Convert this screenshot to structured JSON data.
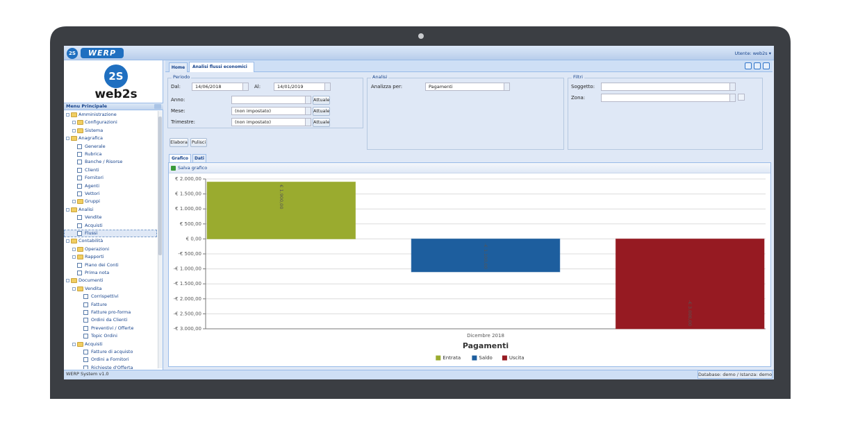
{
  "top_bar": {
    "badge": "2S",
    "logo": "WERP",
    "user": "Utente: web2s ▾"
  },
  "sidebar": {
    "badge": "2S",
    "brand": "web2s",
    "title": "Menu Principale",
    "tree": [
      {
        "label": "Amministrazione",
        "children": [
          {
            "label": "Configurazioni",
            "children": []
          },
          {
            "label": "Sistema",
            "children": []
          }
        ]
      },
      {
        "label": "Anagrafica",
        "children": [
          {
            "label": "Generale"
          },
          {
            "label": "Rubrica"
          },
          {
            "label": "Banche / Risorse"
          },
          {
            "label": "Clienti"
          },
          {
            "label": "Fornitori"
          },
          {
            "label": "Agenti"
          },
          {
            "label": "Vettori"
          },
          {
            "label": "Gruppi",
            "children": []
          }
        ]
      },
      {
        "label": "Analisi",
        "children": [
          {
            "label": "Vendite"
          },
          {
            "label": "Acquisti"
          },
          {
            "label": "Flussi",
            "selected": true
          }
        ]
      },
      {
        "label": "Contabilità",
        "children": [
          {
            "label": "Operazioni",
            "children": []
          },
          {
            "label": "Rapporti",
            "children": []
          },
          {
            "label": "Piano dei Conti"
          },
          {
            "label": "Prima nota"
          }
        ]
      },
      {
        "label": "Documenti",
        "children": [
          {
            "label": "Vendita",
            "children": [
              {
                "label": "Corrispettivi"
              },
              {
                "label": "Fatture"
              },
              {
                "label": "Fatture pro-forma"
              },
              {
                "label": "Ordini da Clienti"
              },
              {
                "label": "Preventivi / Offerte"
              },
              {
                "label": "Topic Ordini"
              }
            ]
          },
          {
            "label": "Acquisti",
            "children": [
              {
                "label": "Fatture di acquisto"
              },
              {
                "label": "Ordini a Fornitori"
              },
              {
                "label": "Richieste d'Offerta"
              }
            ]
          }
        ]
      }
    ]
  },
  "tabs": [
    "Home",
    "Analisi flussi economici"
  ],
  "periodo": {
    "legend": "Periodo",
    "dal_label": "Dal:",
    "dal": "14/06/2018",
    "al_label": "Al:",
    "al": "14/01/2019",
    "rows": [
      {
        "label": "Anno:",
        "button": "Attuale"
      },
      {
        "label": "Mese:",
        "value": "(non impostato)",
        "button": "Attuale"
      },
      {
        "label": "Trimestre:",
        "value": "(non impostato)",
        "button": "Attuale"
      }
    ]
  },
  "actions": [
    "Elabora",
    "Pulisci"
  ],
  "analisi": {
    "legend": "Analisi",
    "label": "Analizza per:",
    "value": "Pagamenti"
  },
  "filtri": {
    "legend": "Filtri",
    "fields": [
      "Soggetto:",
      "Zona:"
    ]
  },
  "view_tabs": [
    "Grafico",
    "Dati"
  ],
  "save_chart": "Salva grafico",
  "chart_data": {
    "type": "bar",
    "title": "Pagamenti",
    "categories": [
      "Dicembre 2018"
    ],
    "series": [
      {
        "name": "Entrata",
        "color": "#9aab2f",
        "values": [
          1900
        ],
        "value_labels": [
          "€ 1.900,00"
        ]
      },
      {
        "name": "Saldo",
        "color": "#1d5e9e",
        "values": [
          -1100
        ],
        "value_labels": [
          "-€ 1.100,00"
        ]
      },
      {
        "name": "Uscita",
        "color": "#961a22",
        "values": [
          -3000
        ],
        "value_labels": [
          "-€ 3.000,00"
        ]
      }
    ],
    "ylim": [
      -3000,
      2000
    ],
    "yticks": [
      {
        "value": 2000,
        "label": "€ 2.000,00"
      },
      {
        "value": 1500,
        "label": "€ 1.500,00"
      },
      {
        "value": 1000,
        "label": "€ 1.000,00"
      },
      {
        "value": 500,
        "label": "€ 500,00"
      },
      {
        "value": 0,
        "label": "€ 0,00"
      },
      {
        "value": -500,
        "label": "-€ 500,00"
      },
      {
        "value": -1000,
        "label": "-€ 1.000,00"
      },
      {
        "value": -1500,
        "label": "-€ 1.500,00"
      },
      {
        "value": -2000,
        "label": "-€ 2.000,00"
      },
      {
        "value": -2500,
        "label": "-€ 2.500,00"
      },
      {
        "value": -3000,
        "label": "-€ 3.000,00"
      }
    ],
    "grid": true,
    "legend": "bottom"
  },
  "footer": {
    "version": "WERP System v1.0",
    "database": "Database: demo / Istanza: demo"
  }
}
